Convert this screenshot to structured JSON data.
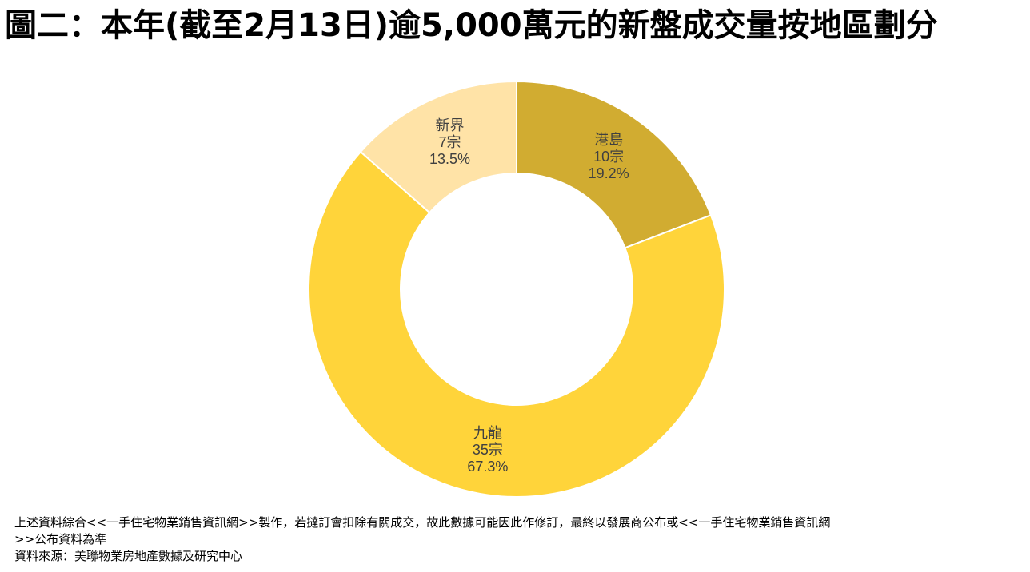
{
  "title": "圖二：本年(截至2月13日)逾5,000萬元的新盤成交量按地區劃分",
  "chart_data": {
    "type": "pie",
    "donut": true,
    "categories": [
      "港島",
      "九龍",
      "新界"
    ],
    "counts": [
      10,
      35,
      7
    ],
    "count_unit": "宗",
    "percent_labels": [
      "19.2%",
      "67.3%",
      "13.5%"
    ],
    "values": [
      19.2,
      67.3,
      13.5
    ],
    "colors": [
      "#D1AC31",
      "#FFD43A",
      "#FFE3A7"
    ],
    "legend": "none"
  },
  "footnotes": {
    "line1": "上述資料綜合<<一手住宅物業銷售資訊網>>製作，若撻訂會扣除有關成交，故此數據可能因此作修訂，最終以發展商公布或<<一手住宅物業銷售資訊網",
    "line2": ">>公布資料為準",
    "line3": "資料來源：美聯物業房地產數據及研究中心"
  }
}
